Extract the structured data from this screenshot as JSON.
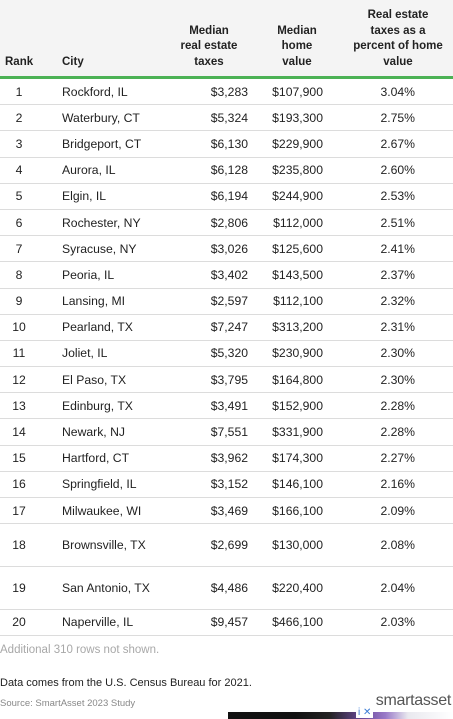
{
  "table": {
    "headers": {
      "rank": "Rank",
      "city": "City",
      "taxes": [
        "Median",
        "real estate",
        "taxes"
      ],
      "home": [
        "Median",
        "home",
        "value"
      ],
      "pct": [
        "Real estate",
        "taxes as a",
        "percent of home",
        "value"
      ]
    },
    "rows": [
      {
        "rank": "1",
        "city": "Rockford, IL",
        "taxes": "$3,283",
        "home": "$107,900",
        "pct": "3.04%"
      },
      {
        "rank": "2",
        "city": "Waterbury, CT",
        "taxes": "$5,324",
        "home": "$193,300",
        "pct": "2.75%"
      },
      {
        "rank": "3",
        "city": "Bridgeport, CT",
        "taxes": "$6,130",
        "home": "$229,900",
        "pct": "2.67%"
      },
      {
        "rank": "4",
        "city": "Aurora, IL",
        "taxes": "$6,128",
        "home": "$235,800",
        "pct": "2.60%"
      },
      {
        "rank": "5",
        "city": "Elgin, IL",
        "taxes": "$6,194",
        "home": "$244,900",
        "pct": "2.53%"
      },
      {
        "rank": "6",
        "city": "Rochester, NY",
        "taxes": "$2,806",
        "home": "$112,000",
        "pct": "2.51%"
      },
      {
        "rank": "7",
        "city": "Syracuse, NY",
        "taxes": "$3,026",
        "home": "$125,600",
        "pct": "2.41%"
      },
      {
        "rank": "8",
        "city": "Peoria, IL",
        "taxes": "$3,402",
        "home": "$143,500",
        "pct": "2.37%"
      },
      {
        "rank": "9",
        "city": "Lansing, MI",
        "taxes": "$2,597",
        "home": "$112,100",
        "pct": "2.32%"
      },
      {
        "rank": "10",
        "city": "Pearland, TX",
        "taxes": "$7,247",
        "home": "$313,200",
        "pct": "2.31%"
      },
      {
        "rank": "11",
        "city": "Joliet, IL",
        "taxes": "$5,320",
        "home": "$230,900",
        "pct": "2.30%"
      },
      {
        "rank": "12",
        "city": "El Paso, TX",
        "taxes": "$3,795",
        "home": "$164,800",
        "pct": "2.30%"
      },
      {
        "rank": "13",
        "city": "Edinburg, TX",
        "taxes": "$3,491",
        "home": "$152,900",
        "pct": "2.28%"
      },
      {
        "rank": "14",
        "city": "Newark, NJ",
        "taxes": "$7,551",
        "home": "$331,900",
        "pct": "2.28%"
      },
      {
        "rank": "15",
        "city": "Hartford, CT",
        "taxes": "$3,962",
        "home": "$174,300",
        "pct": "2.27%"
      },
      {
        "rank": "16",
        "city": "Springfield, IL",
        "taxes": "$3,152",
        "home": "$146,100",
        "pct": "2.16%"
      },
      {
        "rank": "17",
        "city": "Milwaukee, WI",
        "taxes": "$3,469",
        "home": "$166,100",
        "pct": "2.09%"
      },
      {
        "rank": "18",
        "city": "Brownsville, TX",
        "taxes": "$2,699",
        "home": "$130,000",
        "pct": "2.08%",
        "tall": true
      },
      {
        "rank": "19",
        "city": "San Antonio, TX",
        "taxes": "$4,486",
        "home": "$220,400",
        "pct": "2.04%",
        "tall": true
      },
      {
        "rank": "20",
        "city": "Naperville, IL",
        "taxes": "$9,457",
        "home": "$466,100",
        "pct": "2.03%"
      }
    ]
  },
  "footer": {
    "more_rows": "Additional 310 rows not shown.",
    "data_note": "Data comes from the U.S. Census Bureau for 2021.",
    "source": "Source: SmartAsset 2023 Study"
  },
  "logo": "smartasset",
  "ad": {
    "icons": "i ✕",
    "chevron": "⌄"
  },
  "colors": {
    "accent": "#4cb255",
    "header_bg": "#f4f4f4"
  }
}
